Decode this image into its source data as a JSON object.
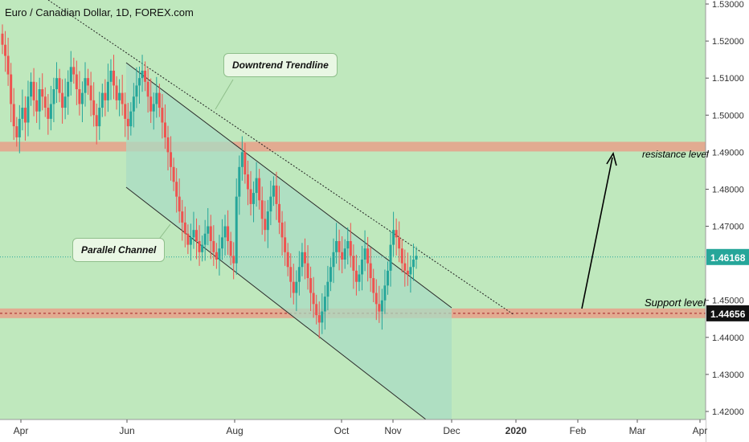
{
  "chart_data": {
    "type": "candlestick",
    "title": "Euro / Canadian Dollar, 1D, FOREX.com",
    "x_ticks": [
      "Apr",
      "Jun",
      "Aug",
      "Oct",
      "Nov",
      "Dec",
      "2020",
      "Feb",
      "Mar",
      "Apr"
    ],
    "y_ticks": [
      "1.53000",
      "1.52000",
      "1.51000",
      "1.50000",
      "1.49000",
      "1.48000",
      "1.47000",
      "1.45000",
      "1.44000",
      "1.43000",
      "1.42000"
    ],
    "ylim": [
      1.42,
      1.53
    ],
    "current_price": "1.46168",
    "support_price": "1.44656",
    "resistance_level": 1.4915,
    "support_level": 1.4465,
    "annotations": {
      "trendline": "Downtrend Trendline",
      "channel": "Parallel Channel",
      "resistance": "resistance level",
      "support": "Support level"
    },
    "colors": {
      "up": "#26a69a",
      "down": "#ef5350",
      "background": "#bfe8bd",
      "zone": "#e8a08a"
    },
    "candles_close": [
      1.519,
      1.516,
      1.511,
      1.503,
      1.497,
      1.494,
      1.499,
      1.502,
      1.498,
      1.505,
      1.509,
      1.504,
      1.501,
      1.507,
      1.505,
      1.502,
      1.499,
      1.503,
      1.507,
      1.51,
      1.506,
      1.502,
      1.505,
      1.509,
      1.513,
      1.511,
      1.507,
      1.503,
      1.506,
      1.51,
      1.508,
      1.504,
      1.5,
      1.497,
      1.502,
      1.506,
      1.504,
      1.509,
      1.512,
      1.508,
      1.504,
      1.506,
      1.503,
      1.499,
      1.497,
      1.501,
      1.505,
      1.508,
      1.51,
      1.512,
      1.509,
      1.505,
      1.501,
      1.503,
      1.506,
      1.502,
      1.498,
      1.494,
      1.49,
      1.486,
      1.482,
      1.478,
      1.474,
      1.471,
      1.468,
      1.465,
      1.467,
      1.469,
      1.466,
      1.463,
      1.465,
      1.468,
      1.47,
      1.466,
      1.463,
      1.461,
      1.464,
      1.467,
      1.47,
      1.466,
      1.462,
      1.46,
      1.478,
      1.486,
      1.49,
      1.484,
      1.48,
      1.476,
      1.479,
      1.483,
      1.477,
      1.472,
      1.469,
      1.474,
      1.478,
      1.481,
      1.476,
      1.471,
      1.467,
      1.463,
      1.459,
      1.455,
      1.452,
      1.455,
      1.459,
      1.463,
      1.46,
      1.456,
      1.452,
      1.449,
      1.446,
      1.444,
      1.447,
      1.451,
      1.455,
      1.459,
      1.463,
      1.466,
      1.463,
      1.461,
      1.464,
      1.466,
      1.462,
      1.458,
      1.455,
      1.457,
      1.461,
      1.464,
      1.46,
      1.456,
      1.452,
      1.449,
      1.447,
      1.45,
      1.454,
      1.458,
      1.465,
      1.469,
      1.467,
      1.464,
      1.46,
      1.458,
      1.457,
      1.459,
      1.461,
      1.462
    ]
  }
}
